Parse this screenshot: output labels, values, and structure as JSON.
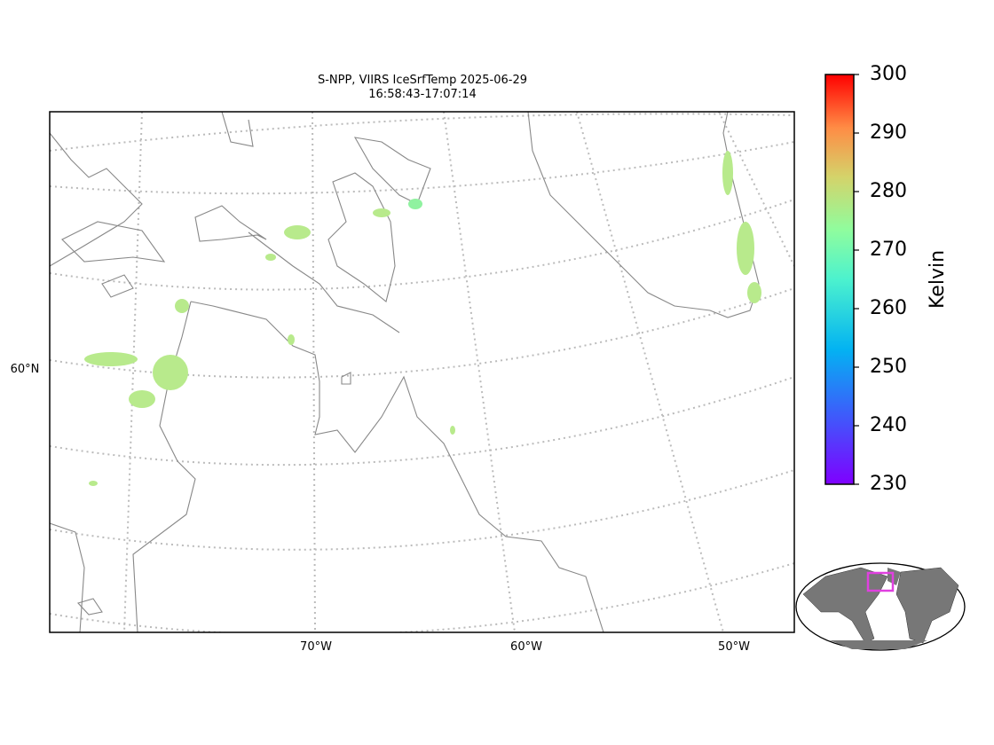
{
  "title": [
    "S-NPP, VIIRS IceSrfTemp 2025-06-29",
    "16:58:43-17:07:14"
  ],
  "lon_labels": [
    "70°W",
    "60°W",
    "50°W"
  ],
  "lat_labels": [
    "60°N"
  ],
  "colorbar": {
    "label": "Kelvin",
    "lim": [
      230,
      300
    ],
    "ticks": [
      230,
      240,
      250,
      260,
      270,
      280,
      290,
      300
    ]
  }
}
